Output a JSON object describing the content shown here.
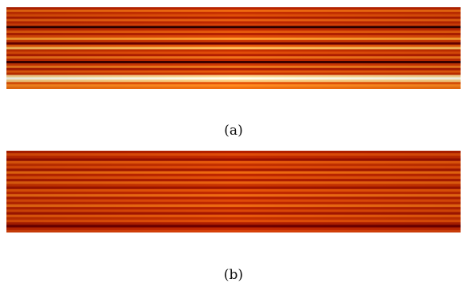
{
  "figure": {
    "panels": [
      {
        "caption": "(a)",
        "stripes": [
          "#b82200",
          "#f06a10",
          "#c83000",
          "#e04e08",
          "#b01e00",
          "#ea6010",
          "#c02800",
          "#d84008",
          "#2a0000",
          "#c02600",
          "#e85a0c",
          "#b42000",
          "#e04a08",
          "#ffa030",
          "#d03a04",
          "#6a0000",
          "#e85808",
          "#ffc060",
          "#c83000",
          "#e24c08",
          "#b41e00",
          "#f07018",
          "#c42a00",
          "#3a0000",
          "#d03804",
          "#f07a1c",
          "#b01c00",
          "#e85a0c",
          "#c63000",
          "#ffd890",
          "#fffff0",
          "#ffd080",
          "#e65408",
          "#ff8a20",
          "#f27010"
        ]
      },
      {
        "caption": "(b)",
        "stripes": [
          "#b42000",
          "#e04c08",
          "#c02800",
          "#9a1000",
          "#e85a0c",
          "#c63000",
          "#e04a08",
          "#a81800",
          "#f06a10",
          "#c02600",
          "#e25008",
          "#b01c00",
          "#ea6210",
          "#c83000",
          "#a01400",
          "#e65408",
          "#c42a00",
          "#f06c14",
          "#b41e00",
          "#e04a08",
          "#c02800",
          "#ee6a12",
          "#b82200",
          "#dc4806",
          "#a61600",
          "#e85a0c",
          "#c63000",
          "#e24e08",
          "#b01e00",
          "#6e0000",
          "#c02600",
          "#d84008"
        ]
      }
    ]
  }
}
